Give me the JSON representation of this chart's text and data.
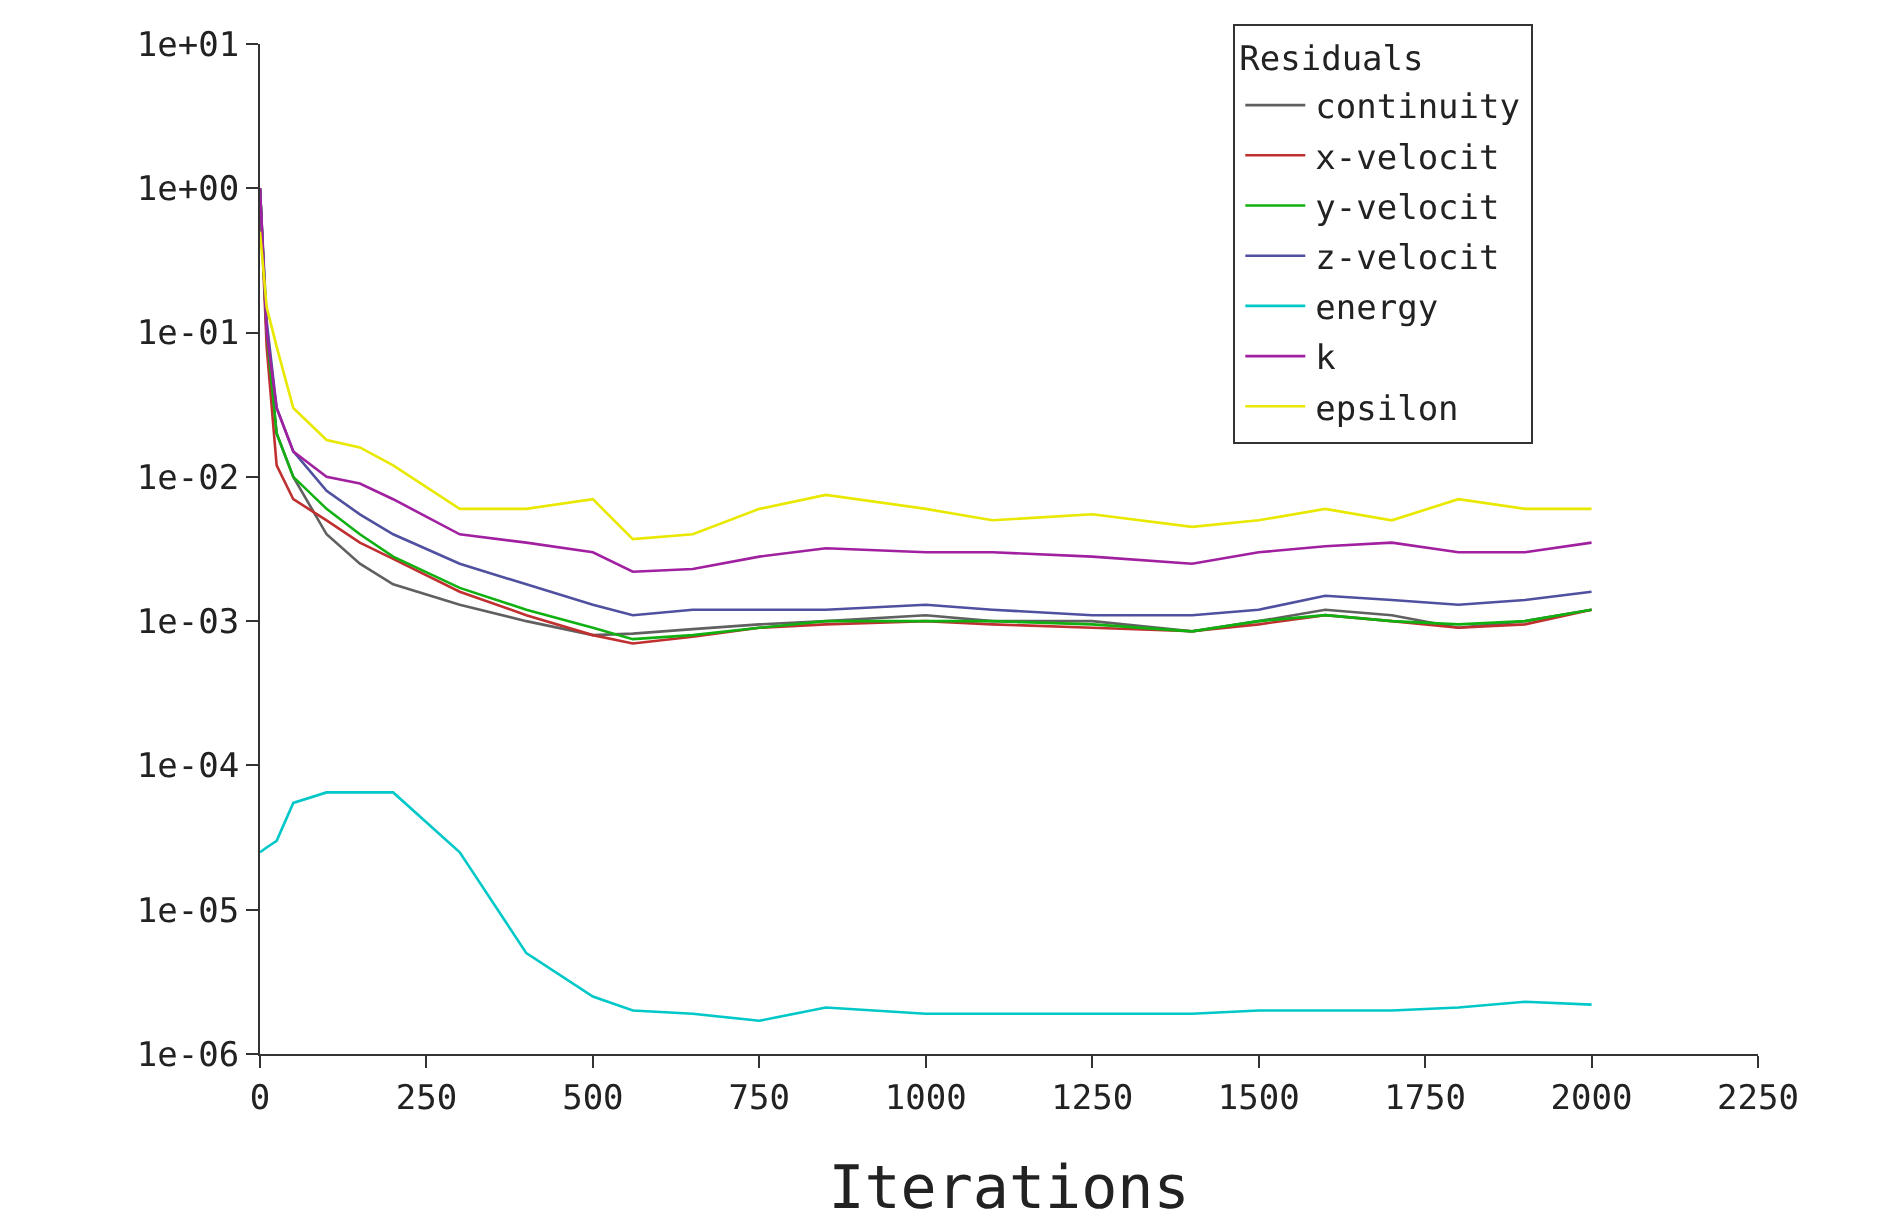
{
  "chart_data": {
    "type": "line",
    "xlabel": "Iterations",
    "legend_title": "Residuals",
    "legend": "top right",
    "log": "y",
    "grid": false,
    "marker": "none",
    "line_style": "solid",
    "xlim": [
      0,
      2250
    ],
    "xticks": [
      0,
      250,
      500,
      750,
      1000,
      1250,
      1500,
      1750,
      2000,
      2250
    ],
    "ylim": [
      1e-06,
      10
    ],
    "yticks": [
      {
        "value": 10,
        "label": "1e+01"
      },
      {
        "value": 1,
        "label": "1e+00"
      },
      {
        "value": 0.1,
        "label": "1e-01"
      },
      {
        "value": 0.01,
        "label": "1e-02"
      },
      {
        "value": 0.001,
        "label": "1e-03"
      },
      {
        "value": 0.0001,
        "label": "1e-04"
      },
      {
        "value": 1e-05,
        "label": "1e-05"
      },
      {
        "value": 1e-06,
        "label": "1e-06"
      }
    ],
    "x": [
      0,
      10,
      25,
      50,
      100,
      150,
      200,
      300,
      400,
      500,
      560,
      650,
      750,
      850,
      1000,
      1100,
      1250,
      1400,
      1500,
      1600,
      1700,
      1800,
      1900,
      2000
    ],
    "series": [
      {
        "name": "continuity",
        "color": "#606060",
        "values": [
          1,
          0.1,
          0.02,
          0.01,
          0.004,
          0.0025,
          0.0018,
          0.0013,
          0.001,
          0.0008,
          0.00082,
          0.00088,
          0.00095,
          0.001,
          0.0011,
          0.001,
          0.001,
          0.00085,
          0.001,
          0.0012,
          0.0011,
          0.0009,
          0.001,
          0.0012
        ]
      },
      {
        "name": "x-velocit",
        "color": "#c03030",
        "values": [
          1,
          0.08,
          0.012,
          0.007,
          0.005,
          0.0035,
          0.0027,
          0.0016,
          0.0011,
          0.0008,
          0.0007,
          0.00078,
          0.0009,
          0.00095,
          0.001,
          0.00095,
          0.0009,
          0.00085,
          0.00095,
          0.0011,
          0.001,
          0.0009,
          0.00095,
          0.0012
        ]
      },
      {
        "name": "y-velocit",
        "color": "#10b010",
        "values": [
          1,
          0.1,
          0.02,
          0.01,
          0.006,
          0.004,
          0.0028,
          0.0017,
          0.0012,
          0.0009,
          0.00075,
          0.0008,
          0.0009,
          0.001,
          0.001,
          0.001,
          0.00095,
          0.00085,
          0.001,
          0.0011,
          0.001,
          0.00095,
          0.001,
          0.0012
        ]
      },
      {
        "name": "z-velocit",
        "color": "#5050a0",
        "values": [
          1,
          0.12,
          0.03,
          0.015,
          0.008,
          0.0055,
          0.004,
          0.0025,
          0.0018,
          0.0013,
          0.0011,
          0.0012,
          0.0012,
          0.0012,
          0.0013,
          0.0012,
          0.0011,
          0.0011,
          0.0012,
          0.0015,
          0.0014,
          0.0013,
          0.0014,
          0.0016
        ]
      },
      {
        "name": "energy",
        "color": "#00c8c8",
        "values": [
          2.5e-05,
          2.7e-05,
          3e-05,
          5.5e-05,
          6.5e-05,
          6.5e-05,
          6.5e-05,
          2.5e-05,
          5e-06,
          2.5e-06,
          2e-06,
          1.9e-06,
          1.7e-06,
          2.1e-06,
          1.9e-06,
          1.9e-06,
          1.9e-06,
          1.9e-06,
          2e-06,
          2e-06,
          2e-06,
          2.1e-06,
          2.3e-06,
          2.2e-06
        ]
      },
      {
        "name": "k",
        "color": "#a020a0",
        "values": [
          1,
          0.1,
          0.03,
          0.015,
          0.01,
          0.009,
          0.007,
          0.004,
          0.0035,
          0.003,
          0.0022,
          0.0023,
          0.0028,
          0.0032,
          0.003,
          0.003,
          0.0028,
          0.0025,
          0.003,
          0.0033,
          0.0035,
          0.003,
          0.003,
          0.0035
        ]
      },
      {
        "name": "epsilon",
        "color": "#e8e800",
        "values": [
          0.5,
          0.15,
          0.08,
          0.03,
          0.018,
          0.016,
          0.012,
          0.006,
          0.006,
          0.007,
          0.0037,
          0.004,
          0.006,
          0.0075,
          0.006,
          0.005,
          0.0055,
          0.0045,
          0.005,
          0.006,
          0.005,
          0.007,
          0.006,
          0.006
        ]
      }
    ]
  }
}
